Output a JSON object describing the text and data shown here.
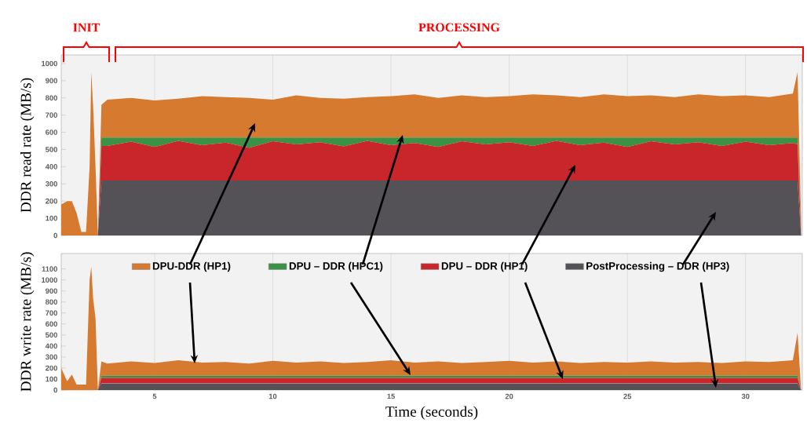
{
  "chart_data": [
    {
      "type": "area",
      "stacked": true,
      "ylabel": "DDR read rate (MB/s)",
      "xlim": [
        1.05,
        32.4
      ],
      "ylim": [
        0,
        1050
      ],
      "xticks": [
        5,
        10,
        15,
        20,
        25,
        30
      ],
      "yticks": [
        0,
        100,
        200,
        300,
        400,
        500,
        600,
        700,
        800,
        900,
        1000
      ],
      "grid": "x",
      "tick_labels": "y",
      "x": [
        1.05,
        1.3,
        1.5,
        1.7,
        1.9,
        2.1,
        2.25,
        2.32,
        2.4,
        2.5,
        2.6,
        2.75,
        3,
        4,
        5,
        6,
        7,
        8,
        9,
        10,
        11,
        12,
        13,
        14,
        15,
        16,
        17,
        18,
        19,
        20,
        21,
        22,
        23,
        24,
        25,
        26,
        27,
        28,
        29,
        30,
        31,
        32,
        32.2,
        32.35
      ],
      "annotations": [
        "INIT",
        "PROCESSING"
      ],
      "series": [
        {
          "color": "#545157",
          "values": [
            0,
            0,
            0,
            0,
            0,
            0,
            0,
            0,
            0,
            0,
            0,
            320,
            320,
            320,
            320,
            320,
            320,
            320,
            320,
            320,
            320,
            320,
            320,
            320,
            320,
            320,
            320,
            320,
            320,
            320,
            320,
            320,
            320,
            320,
            320,
            320,
            320,
            320,
            320,
            320,
            320,
            320,
            320,
            0
          ]
        },
        {
          "color": "#c8262b",
          "values": [
            0,
            0,
            0,
            0,
            0,
            0,
            0,
            0,
            0,
            0,
            0,
            200,
            200,
            225,
            195,
            230,
            205,
            220,
            190,
            228,
            210,
            222,
            198,
            230,
            205,
            218,
            195,
            228,
            210,
            222,
            200,
            230,
            205,
            220,
            195,
            228,
            210,
            222,
            200,
            225,
            205,
            218,
            210,
            0
          ]
        },
        {
          "color": "#3a9246",
          "values": [
            0,
            0,
            0,
            0,
            0,
            0,
            0,
            0,
            0,
            0,
            0,
            50,
            50,
            25,
            55,
            20,
            45,
            30,
            60,
            22,
            40,
            28,
            52,
            20,
            45,
            32,
            55,
            22,
            40,
            28,
            50,
            20,
            45,
            30,
            55,
            22,
            40,
            28,
            50,
            25,
            45,
            32,
            40,
            0
          ]
        },
        {
          "color": "#d67a30",
          "values": [
            180,
            200,
            200,
            130,
            20,
            20,
            400,
            950,
            750,
            400,
            0,
            190,
            220,
            230,
            215,
            225,
            240,
            235,
            230,
            220,
            245,
            230,
            225,
            235,
            240,
            250,
            230,
            245,
            235,
            240,
            250,
            245,
            235,
            250,
            240,
            245,
            235,
            250,
            240,
            245,
            235,
            255,
            380,
            80
          ]
        }
      ]
    },
    {
      "type": "area",
      "stacked": true,
      "xlabel": "Time (seconds)",
      "ylabel": "DDR write rate (MB/s)",
      "xlim": [
        1.05,
        32.4
      ],
      "ylim": [
        0,
        1240
      ],
      "xticks": [
        5,
        10,
        15,
        20,
        25,
        30
      ],
      "yticks": [
        0,
        100,
        200,
        300,
        400,
        500,
        600,
        700,
        800,
        900,
        1000,
        1100
      ],
      "grid": "x",
      "legend": "top",
      "x": [
        1.05,
        1.3,
        1.5,
        1.7,
        1.9,
        2.1,
        2.25,
        2.32,
        2.4,
        2.5,
        2.6,
        2.75,
        3,
        4,
        5,
        6,
        7,
        8,
        9,
        10,
        11,
        12,
        13,
        14,
        15,
        16,
        17,
        18,
        19,
        20,
        21,
        22,
        23,
        24,
        25,
        26,
        27,
        28,
        29,
        30,
        31,
        32,
        32.2,
        32.35
      ],
      "series": [
        {
          "name": "PostProcessing – DDR (HP3)",
          "color": "#545157",
          "values": [
            0,
            0,
            0,
            0,
            0,
            0,
            0,
            0,
            0,
            0,
            0,
            60,
            60,
            60,
            60,
            60,
            60,
            60,
            60,
            60,
            60,
            60,
            60,
            60,
            60,
            60,
            60,
            60,
            60,
            60,
            60,
            60,
            60,
            60,
            60,
            60,
            60,
            60,
            60,
            60,
            60,
            60,
            60,
            0
          ]
        },
        {
          "name": "DPU – DDR (HP1)",
          "color": "#c8262b",
          "values": [
            0,
            0,
            0,
            0,
            0,
            0,
            0,
            0,
            0,
            0,
            0,
            50,
            50,
            50,
            50,
            50,
            50,
            50,
            50,
            50,
            50,
            50,
            50,
            50,
            50,
            50,
            50,
            50,
            50,
            50,
            50,
            50,
            50,
            50,
            50,
            50,
            50,
            50,
            50,
            50,
            50,
            50,
            50,
            0
          ]
        },
        {
          "name": "DPU – DDR (HPC1)",
          "color": "#3a9246",
          "values": [
            0,
            0,
            0,
            0,
            0,
            0,
            0,
            0,
            0,
            0,
            0,
            20,
            20,
            20,
            20,
            20,
            20,
            20,
            20,
            20,
            20,
            20,
            20,
            20,
            20,
            20,
            20,
            20,
            20,
            20,
            20,
            20,
            20,
            20,
            20,
            20,
            20,
            20,
            20,
            20,
            20,
            20,
            20,
            0
          ]
        },
        {
          "name": "DPU-DDR (HP1)",
          "color": "#d67a30",
          "values": [
            200,
            80,
            140,
            50,
            50,
            50,
            1000,
            1120,
            830,
            650,
            0,
            130,
            110,
            130,
            115,
            140,
            120,
            125,
            110,
            135,
            120,
            130,
            115,
            125,
            140,
            120,
            130,
            115,
            125,
            135,
            120,
            130,
            115,
            125,
            120,
            130,
            120,
            125,
            115,
            130,
            125,
            140,
            390,
            0
          ]
        }
      ]
    }
  ]
}
